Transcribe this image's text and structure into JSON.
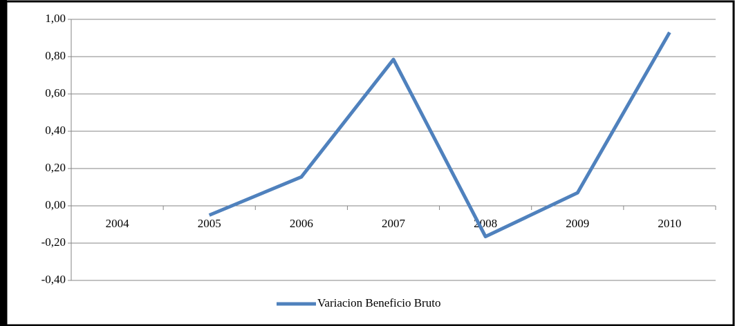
{
  "chart_data": {
    "type": "line",
    "categories": [
      "2004",
      "2005",
      "2006",
      "2007",
      "2008",
      "2009",
      "2010"
    ],
    "series": [
      {
        "name": "Variacion Beneficio Bruto",
        "color": "#4f81bd",
        "values": [
          null,
          -0.05,
          0.155,
          0.785,
          -0.165,
          0.07,
          0.93
        ]
      }
    ],
    "ylim": [
      -0.4,
      1.0
    ],
    "yticks": [
      {
        "value": -0.4,
        "label": "-0,40"
      },
      {
        "value": -0.2,
        "label": "-0,20"
      },
      {
        "value": 0,
        "label": "0,00"
      },
      {
        "value": 0.2,
        "label": "0,20"
      },
      {
        "value": 0.4,
        "label": "0,40"
      },
      {
        "value": 0.6,
        "label": "0,60"
      },
      {
        "value": 0.8,
        "label": "0,80"
      },
      {
        "value": 1.0,
        "label": "1,00"
      }
    ],
    "grid": true,
    "legend": "bottom"
  }
}
